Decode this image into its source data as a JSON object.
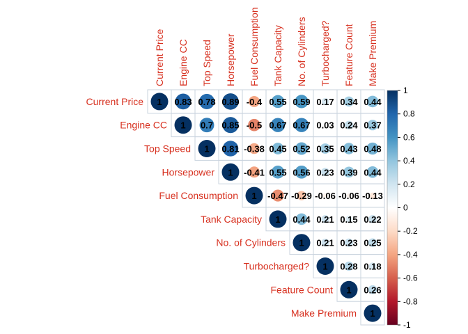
{
  "chart_data": {
    "type": "heatmap",
    "variables": [
      "Current Price",
      "Engine CC",
      "Top Speed",
      "Horsepower",
      "Fuel Consumption",
      "Tank Capacity",
      "No. of Cylinders",
      "Turbocharged?",
      "Feature Count",
      "Make Premium"
    ],
    "matrix": [
      [
        1,
        0.83,
        0.78,
        0.89,
        -0.4,
        0.55,
        0.59,
        0.17,
        0.34,
        0.44
      ],
      [
        null,
        1,
        0.7,
        0.85,
        -0.5,
        0.67,
        0.67,
        0.03,
        0.24,
        0.37
      ],
      [
        null,
        null,
        1,
        0.81,
        -0.38,
        0.45,
        0.52,
        0.35,
        0.43,
        0.48
      ],
      [
        null,
        null,
        null,
        1,
        -0.41,
        0.55,
        0.56,
        0.23,
        0.39,
        0.44
      ],
      [
        null,
        null,
        null,
        null,
        1,
        -0.47,
        -0.29,
        -0.06,
        -0.06,
        -0.13
      ],
      [
        null,
        null,
        null,
        null,
        null,
        1,
        0.44,
        0.21,
        0.15,
        0.22
      ],
      [
        null,
        null,
        null,
        null,
        null,
        null,
        1,
        0.21,
        0.23,
        0.25
      ],
      [
        null,
        null,
        null,
        null,
        null,
        null,
        null,
        1,
        0.28,
        0.18
      ],
      [
        null,
        null,
        null,
        null,
        null,
        null,
        null,
        null,
        1,
        0.26
      ],
      [
        null,
        null,
        null,
        null,
        null,
        null,
        null,
        null,
        null,
        1
      ]
    ],
    "value_labels": [
      [
        "1",
        "0.83",
        "0.78",
        "0.89",
        "-0.4",
        "0.55",
        "0.59",
        "0.17",
        "0.34",
        "0.44"
      ],
      [
        null,
        "1",
        "0.7",
        "0.85",
        "-0.5",
        "0.67",
        "0.67",
        "0.03",
        "0.24",
        "0.37"
      ],
      [
        null,
        null,
        "1",
        "0.81",
        "-0.38",
        "0.45",
        "0.52",
        "0.35",
        "0.43",
        "0.48"
      ],
      [
        null,
        null,
        null,
        "1",
        "-0.41",
        "0.55",
        "0.56",
        "0.23",
        "0.39",
        "0.44"
      ],
      [
        null,
        null,
        null,
        null,
        "1",
        "-0.47",
        "-0.29",
        "-0.06",
        "-0.06",
        "-0.13"
      ],
      [
        null,
        null,
        null,
        null,
        null,
        "1",
        "0.44",
        "0.21",
        "0.15",
        "0.22"
      ],
      [
        null,
        null,
        null,
        null,
        null,
        null,
        "1",
        "0.21",
        "0.23",
        "0.25"
      ],
      [
        null,
        null,
        null,
        null,
        null,
        null,
        null,
        "1",
        "0.28",
        "0.18"
      ],
      [
        null,
        null,
        null,
        null,
        null,
        null,
        null,
        null,
        "1",
        "0.26"
      ],
      [
        null,
        null,
        null,
        null,
        null,
        null,
        null,
        null,
        null,
        "1"
      ]
    ],
    "triangle": "upper",
    "glyph": "circle",
    "color_scale": {
      "range": [
        -1,
        1
      ],
      "ticks": [
        "1",
        "0.8",
        "0.6",
        "0.4",
        "0.2",
        "0",
        "-0.2",
        "-0.4",
        "-0.6",
        "-0.8",
        "-1"
      ],
      "negative_color": "#67001f",
      "mid_color": "#ffffff",
      "positive_color": "#053061"
    },
    "label_color": "#d7301f",
    "legend_placement": "right"
  }
}
